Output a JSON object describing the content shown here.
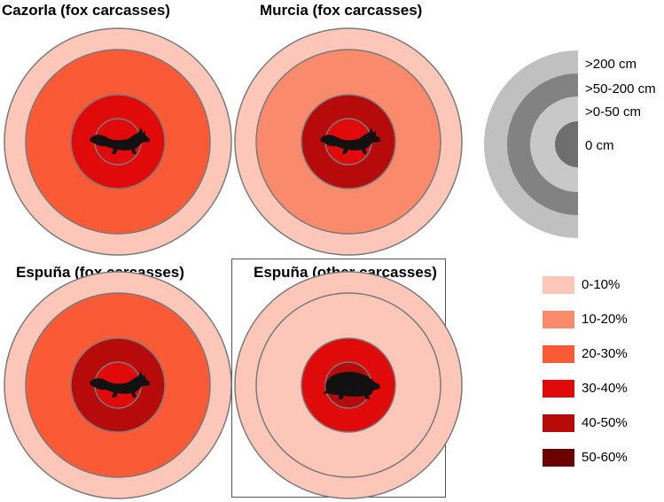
{
  "colors": {
    "c0_10": "#fcc6b8",
    "c10_20": "#f98a6b",
    "c20_30": "#fa5a36",
    "c30_40": "#e00a0a",
    "c40_50": "#b70a0a",
    "c50_60": "#6c0000",
    "ring_stroke": "#7a7a7a",
    "scale_outer": "#c0c0c0",
    "scale_mid": "#828282",
    "scale_inner": "#c8c8c8",
    "scale_core": "#6e6e6e"
  },
  "panels": [
    {
      "title": "Cazorla (fox carcasses)",
      "animal": "fox",
      "rings": [
        "c0_10",
        "c20_30",
        "c30_40",
        "c30_40"
      ]
    },
    {
      "title": "Murcia (fox carcasses)",
      "animal": "fox",
      "rings": [
        "c0_10",
        "c10_20",
        "c40_50",
        "c30_40"
      ]
    },
    {
      "title": "Espuña (fox carcasses)",
      "animal": "fox",
      "rings": [
        "c0_10",
        "c20_30",
        "c40_50",
        "c30_40"
      ]
    },
    {
      "title": "Espuña (other carcasses)",
      "animal": "badger",
      "rings": [
        "c0_10",
        "c0_10",
        "c30_40",
        "c40_50"
      ]
    }
  ],
  "distance_scale": {
    "labels": [
      ">200 cm",
      ">50-200 cm",
      ">0-50 cm",
      "0 cm"
    ]
  },
  "legend": [
    {
      "label": "0-10%",
      "color": "c0_10"
    },
    {
      "label": "10-20%",
      "color": "c10_20"
    },
    {
      "label": "20-30%",
      "color": "c20_30"
    },
    {
      "label": "30-40%",
      "color": "c30_40"
    },
    {
      "label": "40-50%",
      "color": "c40_50"
    },
    {
      "label": "50-60%",
      "color": "c50_60"
    }
  ]
}
